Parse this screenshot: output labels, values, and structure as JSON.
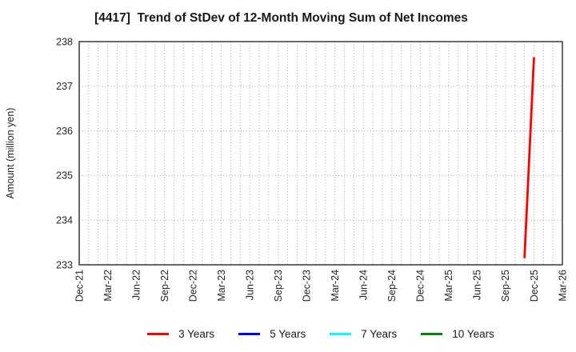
{
  "chart_data": {
    "type": "line",
    "title": "[4417]  Trend of StDev of 12-Month Moving Sum of Net Incomes",
    "ylabel": "Amount (million yen)",
    "ylim": [
      233,
      238
    ],
    "y_ticks": [
      233,
      234,
      235,
      236,
      237,
      238
    ],
    "x_tick_labels": [
      "Dec-21",
      "Mar-22",
      "Jun-22",
      "Sep-22",
      "Dec-22",
      "Mar-23",
      "Jun-23",
      "Sep-23",
      "Dec-23",
      "Mar-24",
      "Jun-24",
      "Sep-24",
      "Dec-24",
      "Mar-25",
      "Jun-25",
      "Sep-25",
      "Dec-25",
      "Mar-26"
    ],
    "months_per_tick": 3,
    "x_month_count": 51,
    "grid": {
      "style": "dotted",
      "vertical": "monthly",
      "horizontal": "every 1 unit",
      "color": "#a6a6a6"
    },
    "legend_position": "bottom",
    "axis_color": "#2b2b2b",
    "text_color": "#262626",
    "series": [
      {
        "name": "3 Years",
        "color": "#ff0000",
        "points": [
          {
            "month": "Nov-25",
            "month_index": 47,
            "value": 233.15
          },
          {
            "month": "Dec-25",
            "month_index": 48,
            "value": 237.65
          }
        ]
      },
      {
        "name": "5 Years",
        "color": "#0000ff",
        "points": []
      },
      {
        "name": "7 Years",
        "color": "#00ffff",
        "points": []
      },
      {
        "name": "10 Years",
        "color": "#008000",
        "points": []
      }
    ]
  }
}
